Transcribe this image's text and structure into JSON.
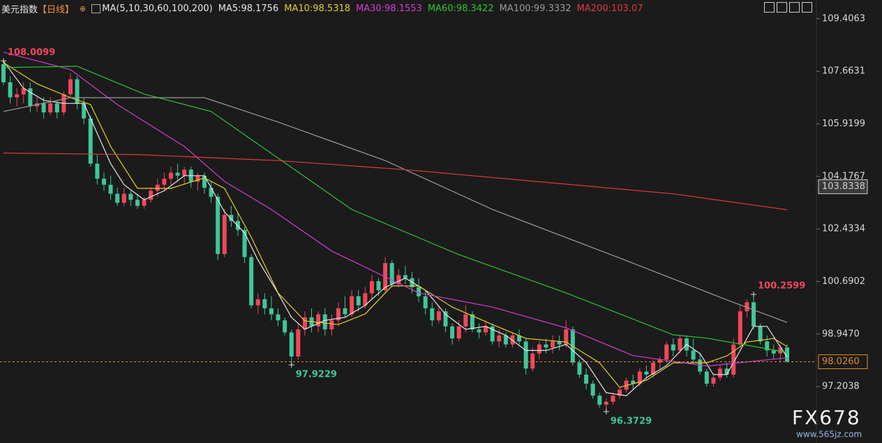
{
  "chart_data": {
    "type": "candlestick",
    "title": "美元指数",
    "period": "【日线】",
    "indicator": "MA(5,10,30,60,100,200)",
    "ylim": [
      95.33,
      110.03
    ],
    "yticks": [
      109.4063,
      107.6631,
      105.9199,
      104.1767,
      102.4334,
      100.6902,
      {
        "value": 98.947,
        "label": "98.9470"
      },
      97.2038
    ],
    "up_color": "#f0475a",
    "down_color": "#3fc69a",
    "candles": [
      [
        107.9,
        108.0099,
        107.2,
        107.3
      ],
      [
        107.3,
        107.5,
        106.6,
        106.8
      ],
      [
        106.8,
        107.1,
        106.5,
        106.9
      ],
      [
        106.9,
        107.3,
        106.6,
        107.1
      ],
      [
        107.1,
        107.3,
        106.3,
        106.5
      ],
      [
        106.5,
        106.8,
        106.3,
        106.6
      ],
      [
        106.6,
        106.8,
        106.1,
        106.3
      ],
      [
        106.3,
        106.8,
        106.2,
        106.6
      ],
      [
        106.6,
        106.7,
        106.1,
        106.3
      ],
      [
        106.3,
        107.0,
        106.2,
        106.9
      ],
      [
        106.9,
        107.6,
        106.8,
        107.4
      ],
      [
        107.4,
        107.5,
        106.4,
        106.6
      ],
      [
        106.6,
        106.8,
        105.9,
        106.1
      ],
      [
        106.1,
        106.2,
        104.5,
        104.6
      ],
      [
        104.6,
        104.9,
        103.9,
        104.1
      ],
      [
        104.1,
        104.3,
        103.7,
        103.9
      ],
      [
        103.9,
        104.2,
        103.4,
        103.6
      ],
      [
        103.6,
        103.8,
        103.2,
        103.3
      ],
      [
        103.3,
        103.8,
        103.2,
        103.6
      ],
      [
        103.6,
        103.7,
        103.2,
        103.4
      ],
      [
        103.4,
        103.6,
        103.1,
        103.2
      ],
      [
        103.2,
        103.5,
        103.1,
        103.4
      ],
      [
        103.4,
        103.8,
        103.3,
        103.7
      ],
      [
        103.7,
        104.1,
        103.5,
        103.9
      ],
      [
        103.9,
        104.3,
        103.7,
        104.1
      ],
      [
        104.1,
        104.5,
        103.9,
        104.3
      ],
      [
        104.3,
        104.6,
        104.0,
        104.2
      ],
      [
        104.2,
        104.5,
        103.9,
        104.4
      ],
      [
        104.4,
        104.5,
        103.8,
        104.0
      ],
      [
        104.0,
        104.3,
        103.7,
        104.2
      ],
      [
        104.2,
        104.3,
        103.6,
        103.8
      ],
      [
        103.8,
        104.0,
        103.3,
        103.5
      ],
      [
        103.5,
        103.6,
        101.4,
        101.6
      ],
      [
        101.6,
        103.1,
        101.5,
        102.9
      ],
      [
        102.9,
        103.2,
        102.5,
        102.7
      ],
      [
        102.7,
        103.0,
        102.2,
        102.4
      ],
      [
        102.4,
        102.5,
        101.3,
        101.5
      ],
      [
        101.5,
        101.6,
        99.8,
        99.9
      ],
      [
        99.9,
        100.3,
        99.6,
        100.1
      ],
      [
        100.1,
        100.3,
        99.6,
        99.8
      ],
      [
        99.8,
        100.2,
        99.4,
        99.6
      ],
      [
        99.6,
        99.8,
        99.2,
        99.4
      ],
      [
        99.4,
        99.5,
        98.9,
        99.0
      ],
      [
        99.0,
        99.1,
        97.9229,
        98.2
      ],
      [
        98.2,
        99.3,
        98.1,
        99.1
      ],
      [
        99.1,
        99.7,
        98.9,
        99.5
      ],
      [
        99.5,
        99.8,
        99.0,
        99.2
      ],
      [
        99.2,
        99.7,
        99.0,
        99.6
      ],
      [
        99.6,
        99.8,
        98.9,
        99.1
      ],
      [
        99.1,
        99.6,
        98.9,
        99.4
      ],
      [
        99.4,
        100.0,
        99.2,
        99.8
      ],
      [
        99.8,
        100.2,
        99.5,
        99.6
      ],
      [
        99.6,
        100.4,
        99.5,
        100.2
      ],
      [
        100.2,
        100.4,
        99.7,
        99.9
      ],
      [
        99.9,
        100.5,
        99.8,
        100.3
      ],
      [
        100.3,
        100.9,
        100.1,
        100.7
      ],
      [
        100.7,
        100.8,
        100.2,
        100.4
      ],
      [
        100.4,
        101.5,
        100.3,
        101.3
      ],
      [
        101.3,
        101.4,
        100.5,
        100.6
      ],
      [
        100.6,
        101.1,
        100.5,
        100.9
      ],
      [
        100.9,
        101.2,
        100.6,
        100.8
      ],
      [
        100.8,
        101.0,
        100.3,
        100.5
      ],
      [
        100.5,
        100.8,
        100.0,
        100.2
      ],
      [
        100.2,
        100.4,
        99.6,
        99.8
      ],
      [
        99.8,
        100.0,
        99.2,
        99.4
      ],
      [
        99.4,
        99.9,
        99.3,
        99.7
      ],
      [
        99.7,
        99.8,
        99.0,
        99.2
      ],
      [
        99.2,
        99.3,
        98.6,
        98.8
      ],
      [
        98.8,
        99.4,
        98.7,
        99.2
      ],
      [
        99.2,
        99.9,
        99.0,
        99.6
      ],
      [
        99.6,
        99.7,
        99.0,
        99.1
      ],
      [
        99.1,
        99.3,
        98.8,
        99.0
      ],
      [
        99.0,
        99.4,
        98.9,
        99.2
      ],
      [
        99.2,
        99.3,
        98.6,
        98.7
      ],
      [
        98.7,
        99.1,
        98.5,
        98.9
      ],
      [
        98.9,
        99.0,
        98.5,
        98.6
      ],
      [
        98.6,
        99.0,
        98.5,
        98.9
      ],
      [
        98.9,
        99.1,
        98.6,
        98.7
      ],
      [
        98.7,
        98.8,
        97.6,
        97.8
      ],
      [
        97.8,
        98.5,
        97.7,
        98.3
      ],
      [
        98.3,
        98.7,
        98.1,
        98.6
      ],
      [
        98.6,
        98.8,
        98.3,
        98.5
      ],
      [
        98.5,
        98.9,
        98.3,
        98.7
      ],
      [
        98.7,
        98.9,
        98.4,
        98.6
      ],
      [
        98.6,
        99.4,
        98.5,
        99.1
      ],
      [
        99.1,
        99.2,
        97.9,
        98.0
      ],
      [
        98.0,
        98.1,
        97.5,
        97.6
      ],
      [
        97.6,
        97.8,
        97.1,
        97.3
      ],
      [
        97.3,
        97.4,
        96.8,
        96.9
      ],
      [
        96.9,
        97.0,
        96.5,
        96.6
      ],
      [
        96.6,
        96.8,
        96.3729,
        96.7
      ],
      [
        96.7,
        97.0,
        96.6,
        96.9
      ],
      [
        96.9,
        97.2,
        96.8,
        97.1
      ],
      [
        97.1,
        97.5,
        97.0,
        97.4
      ],
      [
        97.4,
        97.6,
        97.1,
        97.3
      ],
      [
        97.3,
        97.8,
        97.2,
        97.7
      ],
      [
        97.7,
        97.9,
        97.4,
        97.6
      ],
      [
        97.6,
        98.1,
        97.5,
        98.0
      ],
      [
        98.0,
        98.2,
        97.8,
        98.1
      ],
      [
        98.1,
        98.7,
        98.0,
        98.6
      ],
      [
        98.6,
        98.8,
        98.2,
        98.4
      ],
      [
        98.4,
        98.9,
        98.3,
        98.8
      ],
      [
        98.8,
        98.9,
        98.2,
        98.4
      ],
      [
        98.4,
        98.8,
        98.0,
        98.1
      ],
      [
        98.1,
        98.3,
        97.6,
        97.7
      ],
      [
        97.7,
        97.8,
        97.2,
        97.3
      ],
      [
        97.3,
        97.6,
        97.2,
        97.5
      ],
      [
        97.5,
        97.9,
        97.4,
        97.8
      ],
      [
        97.8,
        98.0,
        97.5,
        97.6
      ],
      [
        97.6,
        98.8,
        97.5,
        98.6
      ],
      [
        98.6,
        99.9,
        98.5,
        99.7
      ],
      [
        99.7,
        100.1,
        99.5,
        100.0
      ],
      [
        100.0,
        100.2599,
        99.1,
        99.2
      ],
      [
        99.2,
        99.3,
        98.6,
        98.7
      ],
      [
        98.7,
        98.9,
        98.2,
        98.4
      ],
      [
        98.4,
        98.6,
        98.1,
        98.3
      ],
      [
        98.3,
        98.6,
        98.0,
        98.5
      ],
      [
        98.5,
        98.6,
        98.0,
        98.026
      ]
    ],
    "series": [
      {
        "name": "MA5",
        "label": "MA5:98.1756",
        "color": "#e6e6e6",
        "x": [
          0,
          3,
          6,
          9,
          12,
          14,
          16,
          18,
          21,
          24,
          27,
          30,
          33,
          36,
          38,
          41,
          43,
          45,
          48,
          51,
          54,
          57,
          60,
          63,
          66,
          69,
          72,
          75,
          78,
          81,
          84,
          87,
          90,
          93,
          96,
          99,
          102,
          104,
          106,
          108,
          110,
          112,
          114,
          117
        ],
        "values": [
          108.0,
          107.1,
          106.7,
          106.6,
          106.6,
          105.6,
          104.6,
          103.9,
          103.4,
          103.7,
          104.2,
          104.2,
          103.0,
          102.3,
          101.4,
          100.3,
          99.5,
          99.1,
          99.4,
          99.5,
          99.9,
          100.5,
          100.8,
          100.4,
          99.6,
          99.1,
          99.2,
          98.9,
          98.4,
          98.4,
          98.6,
          98.0,
          97.0,
          96.9,
          97.5,
          97.9,
          98.6,
          98.3,
          97.6,
          97.6,
          98.4,
          99.2,
          99.2,
          98.18
        ]
      },
      {
        "name": "MA10",
        "label": "MA10:98.5318",
        "color": "#e3cf2e",
        "x": [
          0,
          5,
          10,
          13,
          16,
          20,
          25,
          30,
          33,
          37,
          41,
          45,
          50,
          54,
          58,
          62,
          67,
          73,
          78,
          84,
          89,
          92,
          96,
          100,
          105,
          108,
          111,
          115,
          117
        ],
        "values": [
          107.95,
          107.25,
          106.79,
          106.56,
          105.17,
          103.78,
          103.78,
          104.13,
          103.78,
          102.16,
          100.31,
          99.38,
          99.26,
          99.61,
          100.54,
          100.54,
          99.84,
          99.26,
          98.8,
          98.68,
          97.99,
          97.18,
          97.41,
          97.99,
          97.99,
          98.22,
          98.68,
          98.8,
          98.53
        ]
      },
      {
        "name": "MA30",
        "label": "MA30:98.1553",
        "color": "#d33cd3",
        "x": [
          0,
          10,
          17,
          27,
          33,
          40,
          49,
          62,
          73,
          84,
          94,
          105,
          117
        ],
        "values": [
          108.3,
          107.72,
          106.56,
          105.17,
          104.01,
          103.08,
          101.7,
          100.31,
          99.84,
          99.15,
          98.23,
          97.88,
          98.16
        ]
      },
      {
        "name": "MA60",
        "label": "MA60:98.3422",
        "color": "#2ec42e",
        "x": [
          0,
          11,
          21,
          31,
          40,
          52,
          68,
          84,
          100,
          105,
          117
        ],
        "values": [
          107.79,
          107.83,
          106.91,
          106.33,
          104.94,
          103.08,
          101.58,
          100.31,
          98.92,
          98.81,
          98.34
        ]
      },
      {
        "name": "MA100",
        "label": "MA100:99.3332",
        "color": "#9a9a9a",
        "x": [
          0,
          10,
          30,
          41,
          57,
          73,
          92,
          108,
          117
        ],
        "values": [
          106.33,
          106.79,
          106.79,
          105.98,
          104.7,
          103.08,
          101.47,
          100.08,
          99.33
        ]
      },
      {
        "name": "MA200",
        "label": "MA200:103.07",
        "color": "#e03a3a",
        "x": [
          0,
          20,
          41,
          60,
          80,
          100,
          117
        ],
        "values": [
          104.95,
          104.9,
          104.7,
          104.4,
          104.0,
          103.6,
          103.07
        ]
      }
    ],
    "annotations": [
      {
        "value": 108.0099,
        "label": "108.0099"
      },
      {
        "value": 97.9229,
        "label": "97.9229"
      },
      {
        "value": 96.3729,
        "label": "96.3729"
      },
      {
        "value": 100.2599,
        "label": "100.2599"
      }
    ],
    "levels": [
      {
        "value": 98.026,
        "label": "98.0260",
        "color": "#e08a2c",
        "dashed": true
      },
      {
        "value": 103.8338,
        "color": "#d0d0d0",
        "dashed": false
      }
    ],
    "watermark": {
      "logo": "FX678",
      "site": "www.565jz.com"
    }
  }
}
